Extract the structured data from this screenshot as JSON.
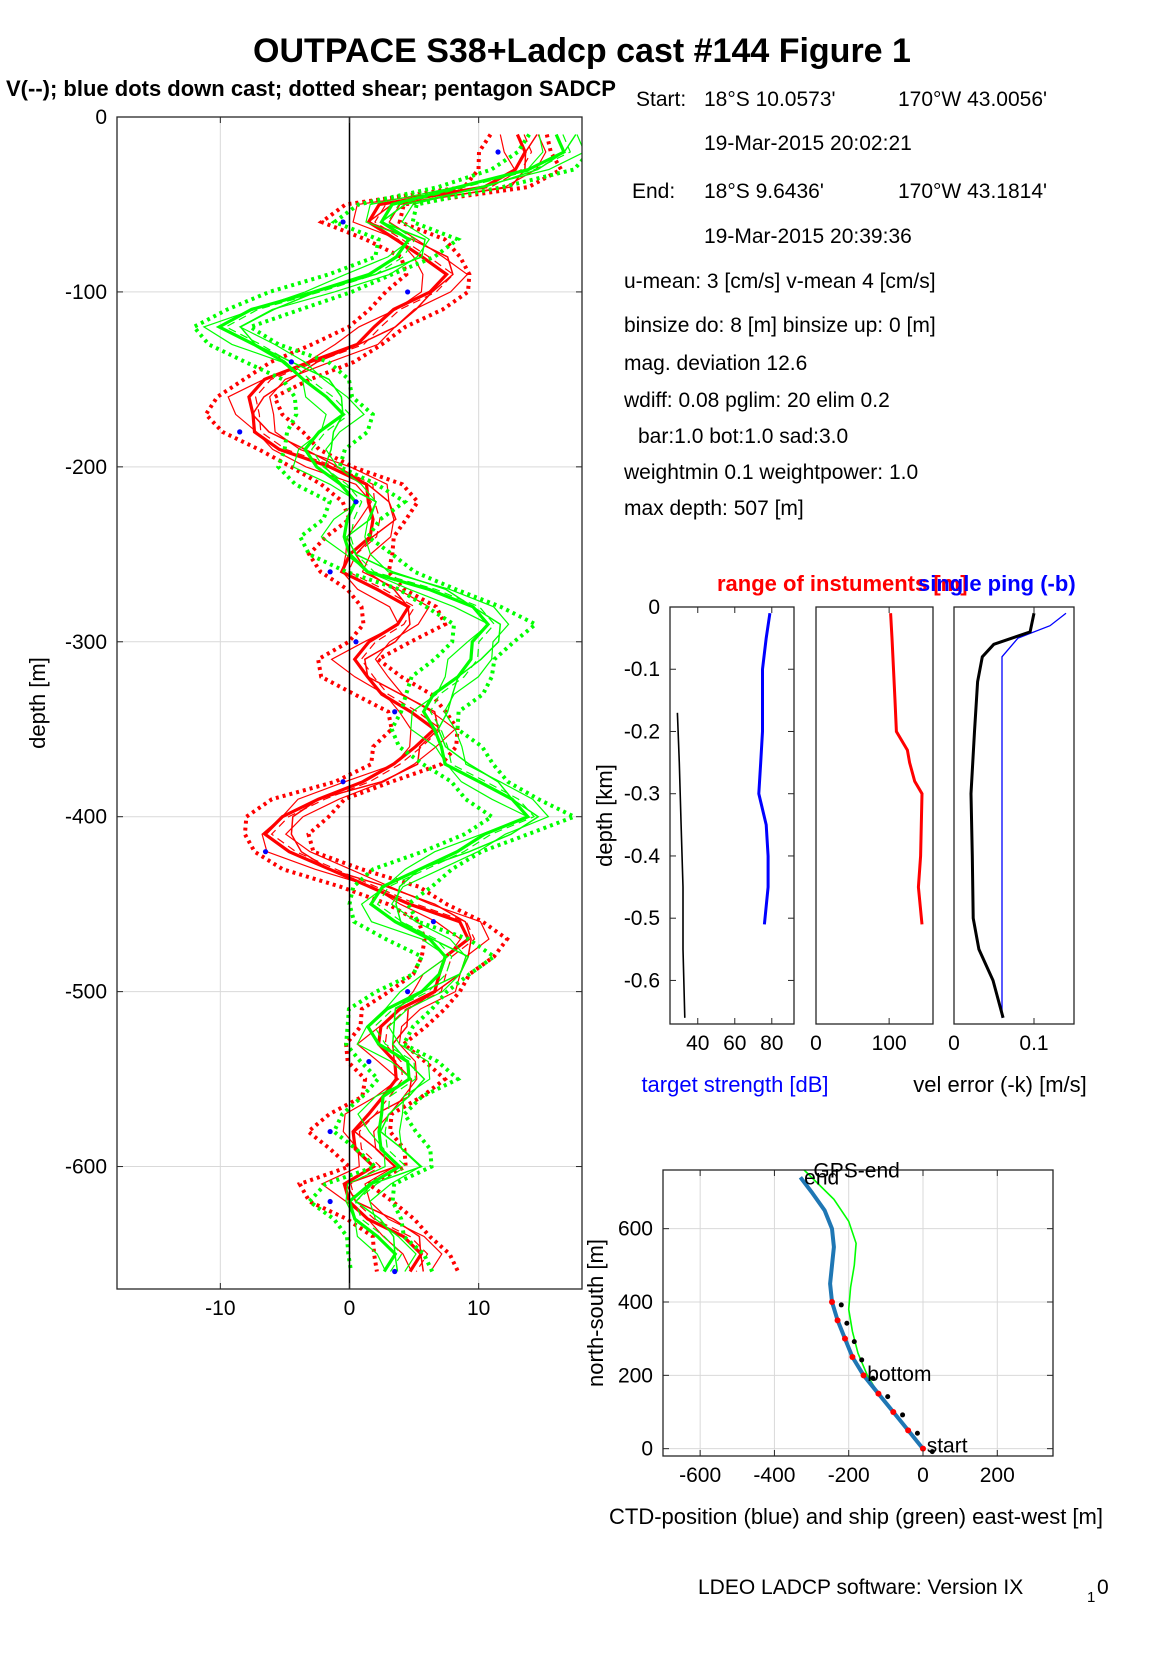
{
  "figure": {
    "title": "OUTPACE S38+Ladcp cast #144  Figure 1",
    "subtitle": "V(--); blue dots down cast; dotted shear; pentagon SADCP",
    "footer": "LDEO LADCP software: Version IX",
    "footer_sub": "1",
    "footer_end": "0"
  },
  "info": {
    "start_label": "Start:",
    "start_lat": "18°S 10.0573'",
    "start_lon": "170°W 43.0056'",
    "start_time": "19-Mar-2015 20:02:21",
    "end_label": "End:",
    "end_lat": "18°S  9.6436'",
    "end_lon": "170°W 43.1814'",
    "end_time": "19-Mar-2015 20:39:36",
    "umean": "u-mean:   3 [cm/s]    v-mean   4 [cm/s]",
    "binsize": "binsize do: 8 [m]  binsize up:  0 [m]",
    "magdev": "mag. deviation 12.6",
    "wdiff": "wdiff: 0.08  pglim: 20  elim 0.2",
    "bar": "bar:1.0 bot:1.0 sad:3.0",
    "weight": "weightmin 0.1  weightpower: 1.0",
    "maxdepth": "max depth: 507 [m]"
  },
  "colors": {
    "red": "#ff0000",
    "green": "#00ff00",
    "blue": "#0000ff",
    "ctd": "#1f77b4",
    "black": "#000000"
  },
  "chart_data": [
    {
      "id": "velocity-profile",
      "type": "line",
      "title": "",
      "xlabel": "",
      "ylabel": "depth [m]",
      "xlim": [
        -18,
        18
      ],
      "ylim": [
        -670,
        0
      ],
      "xticks": [
        -10,
        0,
        10
      ],
      "yticks": [
        0,
        -100,
        -200,
        -300,
        -400,
        -500,
        -600
      ],
      "xtick_labels": [
        "-10",
        "0",
        "10"
      ],
      "ytick_labels": [
        "0",
        "-100",
        "-200",
        "-300",
        "-400",
        "-500",
        "-600"
      ],
      "grid": true,
      "series": [
        {
          "name": "u",
          "color": "red",
          "style": "solid",
          "depth": [
            -10,
            -20,
            -30,
            -40,
            -50,
            -60,
            -70,
            -80,
            -90,
            -100,
            -110,
            -120,
            -130,
            -140,
            -150,
            -160,
            -170,
            -180,
            -190,
            -200,
            -210,
            -220,
            -230,
            -240,
            -250,
            -260,
            -270,
            -280,
            -290,
            -300,
            -310,
            -320,
            -330,
            -340,
            -350,
            -360,
            -370,
            -380,
            -390,
            -400,
            -410,
            -420,
            -430,
            -440,
            -450,
            -460,
            -470,
            -480,
            -490,
            -500,
            -510,
            -520,
            -530,
            -540,
            -550,
            -560,
            -570,
            -580,
            -590,
            -600,
            -610,
            -620,
            -630,
            -640,
            -650,
            -660
          ],
          "values": [
            13,
            13,
            13,
            11,
            2,
            1,
            4,
            6,
            7,
            6,
            4,
            2,
            0,
            -3,
            -6,
            -8,
            -8,
            -7,
            -5,
            -2,
            1,
            2,
            2,
            1,
            0,
            0,
            2,
            4,
            4,
            2,
            0,
            1,
            3,
            5,
            6,
            5,
            4,
            1,
            -3,
            -5,
            -6,
            -5,
            -2,
            2,
            5,
            8,
            9,
            8,
            7,
            6,
            4,
            3,
            2,
            3,
            4,
            3,
            1,
            0,
            1,
            2,
            -1,
            0,
            2,
            4,
            5,
            5
          ]
        },
        {
          "name": "v",
          "color": "green",
          "style": "solid",
          "depth": [
            -10,
            -20,
            -30,
            -40,
            -50,
            -60,
            -70,
            -80,
            -90,
            -100,
            -110,
            -120,
            -130,
            -140,
            -150,
            -160,
            -170,
            -180,
            -190,
            -200,
            -210,
            -220,
            -230,
            -240,
            -250,
            -260,
            -270,
            -280,
            -290,
            -300,
            -310,
            -320,
            -330,
            -340,
            -350,
            -360,
            -370,
            -380,
            -390,
            -400,
            -410,
            -420,
            -430,
            -440,
            -450,
            -460,
            -470,
            -480,
            -490,
            -500,
            -510,
            -520,
            -530,
            -540,
            -550,
            -560,
            -570,
            -580,
            -590,
            -600,
            -610,
            -620,
            -630,
            -640,
            -650,
            -660
          ],
          "values": [
            16,
            16,
            14,
            9,
            3,
            2,
            5,
            4,
            1,
            -3,
            -7,
            -10,
            -8,
            -5,
            -3,
            -2,
            -1,
            -2,
            -3,
            -3,
            -1,
            1,
            0,
            -1,
            0,
            2,
            6,
            9,
            11,
            10,
            9,
            8,
            7,
            6,
            6,
            7,
            8,
            10,
            12,
            14,
            11,
            8,
            5,
            3,
            2,
            3,
            6,
            8,
            7,
            5,
            3,
            2,
            2,
            4,
            5,
            3,
            2,
            2,
            3,
            4,
            1,
            0,
            1,
            2,
            3,
            3
          ]
        }
      ]
    },
    {
      "id": "target-strength",
      "type": "line",
      "title": "",
      "xlabel": "target strength [dB]",
      "ylabel": "depth [km]",
      "xlim": [
        25,
        92
      ],
      "ylim": [
        -0.67,
        0
      ],
      "xticks": [
        40,
        60,
        80
      ],
      "xtick_labels": [
        "40",
        "60",
        "80"
      ],
      "yticks": [
        0,
        -0.1,
        -0.2,
        -0.3,
        -0.4,
        -0.5,
        -0.6
      ],
      "ytick_labels": [
        "0",
        "-0.1",
        "-0.2",
        "-0.3",
        "-0.4",
        "-0.5",
        "-0.6"
      ],
      "series": [
        {
          "name": "",
          "color": "blue",
          "depth": [
            -0.01,
            -0.05,
            -0.1,
            -0.15,
            -0.2,
            -0.25,
            -0.3,
            -0.35,
            -0.4,
            -0.45,
            -0.51
          ],
          "values": [
            79,
            77,
            75,
            75,
            75,
            74,
            73,
            77,
            78,
            78,
            76
          ]
        },
        {
          "name": "",
          "color": "black",
          "depth": [
            -0.17,
            -0.25,
            -0.35,
            -0.45,
            -0.55,
            -0.66
          ],
          "values": [
            29,
            30,
            31,
            32,
            32,
            33
          ]
        }
      ]
    },
    {
      "id": "range",
      "type": "line",
      "title": "range of instuments [m]",
      "xlabel": "",
      "xlim": [
        0,
        160
      ],
      "ylim": [
        -0.67,
        0
      ],
      "xticks": [
        0,
        100
      ],
      "xtick_labels": [
        "0",
        "100"
      ],
      "series": [
        {
          "name": "",
          "color": "red",
          "depth": [
            -0.01,
            -0.05,
            -0.1,
            -0.15,
            -0.2,
            -0.23,
            -0.25,
            -0.28,
            -0.3,
            -0.35,
            -0.4,
            -0.45,
            -0.51
          ],
          "values": [
            102,
            104,
            106,
            108,
            110,
            125,
            128,
            135,
            145,
            144,
            143,
            140,
            145
          ]
        }
      ]
    },
    {
      "id": "single-ping",
      "type": "line",
      "title": "single ping (-b)",
      "xlabel": "vel error (-k) [m/s]",
      "xlim": [
        0,
        0.15
      ],
      "ylim": [
        -0.67,
        0
      ],
      "xticks": [
        0,
        0.1
      ],
      "xtick_labels": [
        "0",
        "0.1"
      ],
      "series": [
        {
          "name": "",
          "color": "blue",
          "depth": [
            -0.01,
            -0.03,
            -0.05,
            -0.08,
            -0.12,
            -0.2,
            -0.3,
            -0.4,
            -0.5,
            -0.6,
            -0.66
          ],
          "values": [
            0.14,
            0.12,
            0.08,
            0.06,
            0.06,
            0.06,
            0.06,
            0.06,
            0.06,
            0.06,
            0.06
          ]
        },
        {
          "name": "",
          "color": "black",
          "depth": [
            -0.01,
            -0.04,
            -0.06,
            -0.08,
            -0.12,
            -0.2,
            -0.3,
            -0.4,
            -0.5,
            -0.55,
            -0.6,
            -0.66
          ],
          "values": [
            0.1,
            0.095,
            0.05,
            0.035,
            0.03,
            0.025,
            0.022,
            0.022,
            0.025,
            0.03,
            0.05,
            0.06
          ]
        }
      ]
    },
    {
      "id": "position",
      "type": "line",
      "title": "",
      "xlabel": "CTD-position (blue) and ship (green) east-west [m]",
      "ylabel": "north-south [m]",
      "xlim": [
        -700,
        350
      ],
      "ylim": [
        -20,
        760
      ],
      "xticks": [
        -600,
        -400,
        -200,
        0,
        200
      ],
      "xtick_labels": [
        "-600",
        "-400",
        "-200",
        "0",
        "200"
      ],
      "yticks": [
        0,
        200,
        400,
        600
      ],
      "ytick_labels": [
        "0",
        "200",
        "400",
        "600"
      ],
      "labels": {
        "start": "start",
        "bottom": "bottom",
        "end": "end",
        "gps_end": "GPS-end"
      },
      "series": [
        {
          "name": "",
          "color": "blue",
          "x": [
            0,
            -40,
            -80,
            -120,
            -160,
            -190,
            -210,
            -230,
            -245,
            -250,
            -245,
            -240,
            -245,
            -265,
            -300,
            -330
          ],
          "y": [
            0,
            50,
            100,
            150,
            200,
            250,
            300,
            350,
            400,
            450,
            500,
            550,
            600,
            650,
            700,
            740
          ]
        },
        {
          "name": "",
          "color": "green",
          "x": [
            0,
            -40,
            -80,
            -120,
            -150,
            -175,
            -190,
            -200,
            -195,
            -185,
            -180,
            -200,
            -240,
            -290,
            -320
          ],
          "y": [
            0,
            50,
            100,
            150,
            200,
            260,
            320,
            380,
            440,
            500,
            560,
            620,
            680,
            730,
            760
          ]
        }
      ]
    }
  ]
}
